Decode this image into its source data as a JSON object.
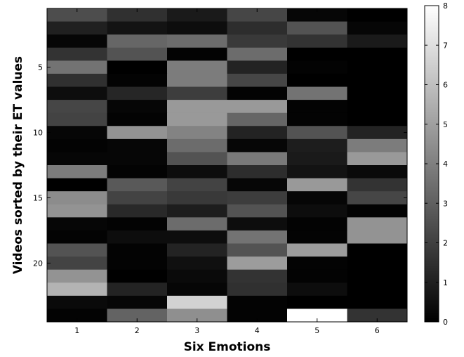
{
  "chart_data": {
    "type": "heatmap",
    "xlabel": "Six Emotions",
    "ylabel": "Videos sorted by their ET values",
    "x_categories": [
      "1",
      "2",
      "3",
      "4",
      "5",
      "6"
    ],
    "y_ticks": [
      5,
      10,
      15,
      20
    ],
    "rows": 24,
    "colorbar": {
      "min": 0,
      "max": 8,
      "ticks": [
        0,
        1,
        2,
        3,
        4,
        5,
        6,
        7,
        8
      ],
      "colormap": "gray"
    },
    "values": [
      [
        2.4,
        1.5,
        0.8,
        2.2,
        0.2,
        0.0
      ],
      [
        1.0,
        0.6,
        0.4,
        1.4,
        2.6,
        0.2
      ],
      [
        0.2,
        3.2,
        3.4,
        1.8,
        1.6,
        0.8
      ],
      [
        1.6,
        2.6,
        0.1,
        3.4,
        0.0,
        0.0
      ],
      [
        3.6,
        0.0,
        3.9,
        1.1,
        0.1,
        0.0
      ],
      [
        1.5,
        0.1,
        3.9,
        2.2,
        0.0,
        0.0
      ],
      [
        0.4,
        1.2,
        1.9,
        0.1,
        3.6,
        0.0
      ],
      [
        2.2,
        0.2,
        4.8,
        4.8,
        0.1,
        0.0
      ],
      [
        2.1,
        0.1,
        4.8,
        3.2,
        0.1,
        0.0
      ],
      [
        0.2,
        4.6,
        4.1,
        1.1,
        2.6,
        1.1
      ],
      [
        0.1,
        0.2,
        3.4,
        0.2,
        0.9,
        3.9
      ],
      [
        0.2,
        0.2,
        2.6,
        3.8,
        0.8,
        4.8
      ],
      [
        3.9,
        0.1,
        0.4,
        1.4,
        0.6,
        0.3
      ],
      [
        0.0,
        2.8,
        2.1,
        0.2,
        4.8,
        1.6
      ],
      [
        4.4,
        2.1,
        1.8,
        1.9,
        0.2,
        2.2
      ],
      [
        4.6,
        1.3,
        0.9,
        2.6,
        0.4,
        0.1
      ],
      [
        0.2,
        0.1,
        3.4,
        0.4,
        0.1,
        4.6
      ],
      [
        0.1,
        0.4,
        0.4,
        3.6,
        0.1,
        4.6
      ],
      [
        2.6,
        0.1,
        1.1,
        2.6,
        4.9,
        0.0
      ],
      [
        2.1,
        0.1,
        0.5,
        4.9,
        0.1,
        0.0
      ],
      [
        4.6,
        0.0,
        0.3,
        1.6,
        0.1,
        0.0
      ],
      [
        5.6,
        1.1,
        0.2,
        1.5,
        0.4,
        0.0
      ],
      [
        0.3,
        0.2,
        6.6,
        0.1,
        0.0,
        0.0
      ],
      [
        0.1,
        3.1,
        4.5,
        0.1,
        8.0,
        1.6
      ]
    ]
  }
}
